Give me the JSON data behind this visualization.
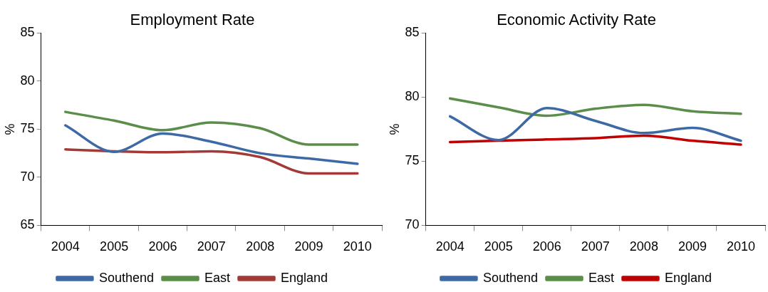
{
  "chart_data": [
    {
      "type": "line",
      "title": "Employment Rate",
      "ylabel": "%",
      "categories": [
        "2004",
        "2005",
        "2006",
        "2007",
        "2008",
        "2009",
        "2010"
      ],
      "series": [
        {
          "name": "Southend",
          "color": "#3d6aa5",
          "values": [
            75.4,
            72.65,
            74.55,
            73.7,
            72.5,
            71.95,
            71.4
          ]
        },
        {
          "name": "East",
          "color": "#5a8e4a",
          "values": [
            76.8,
            75.9,
            74.9,
            75.7,
            75.1,
            73.4,
            73.4
          ]
        },
        {
          "name": "England",
          "color": "#a33a38",
          "values": [
            72.9,
            72.7,
            72.6,
            72.7,
            72.1,
            70.4,
            70.4
          ]
        }
      ],
      "ylim": [
        65,
        85
      ],
      "yticks": [
        65,
        70,
        75,
        80,
        85
      ],
      "grid": false,
      "legend": "bottom",
      "marker": "none",
      "line_style": "solid"
    },
    {
      "type": "line",
      "title": "Economic Activity Rate",
      "ylabel": "%",
      "categories": [
        "2004",
        "2005",
        "2006",
        "2007",
        "2008",
        "2009",
        "2010"
      ],
      "series": [
        {
          "name": "Southend",
          "color": "#3d6aa5",
          "values": [
            78.5,
            76.65,
            79.15,
            78.15,
            77.2,
            77.6,
            76.6
          ]
        },
        {
          "name": "East",
          "color": "#5a8e4a",
          "values": [
            79.9,
            79.2,
            78.55,
            79.1,
            79.4,
            78.9,
            78.7
          ]
        },
        {
          "name": "England",
          "color": "#c00000",
          "values": [
            76.5,
            76.6,
            76.7,
            76.8,
            77.0,
            76.6,
            76.3
          ]
        }
      ],
      "ylim": [
        70,
        85
      ],
      "yticks": [
        70,
        75,
        80,
        85
      ],
      "grid": false,
      "legend": "bottom",
      "marker": "none",
      "line_style": "solid"
    }
  ]
}
